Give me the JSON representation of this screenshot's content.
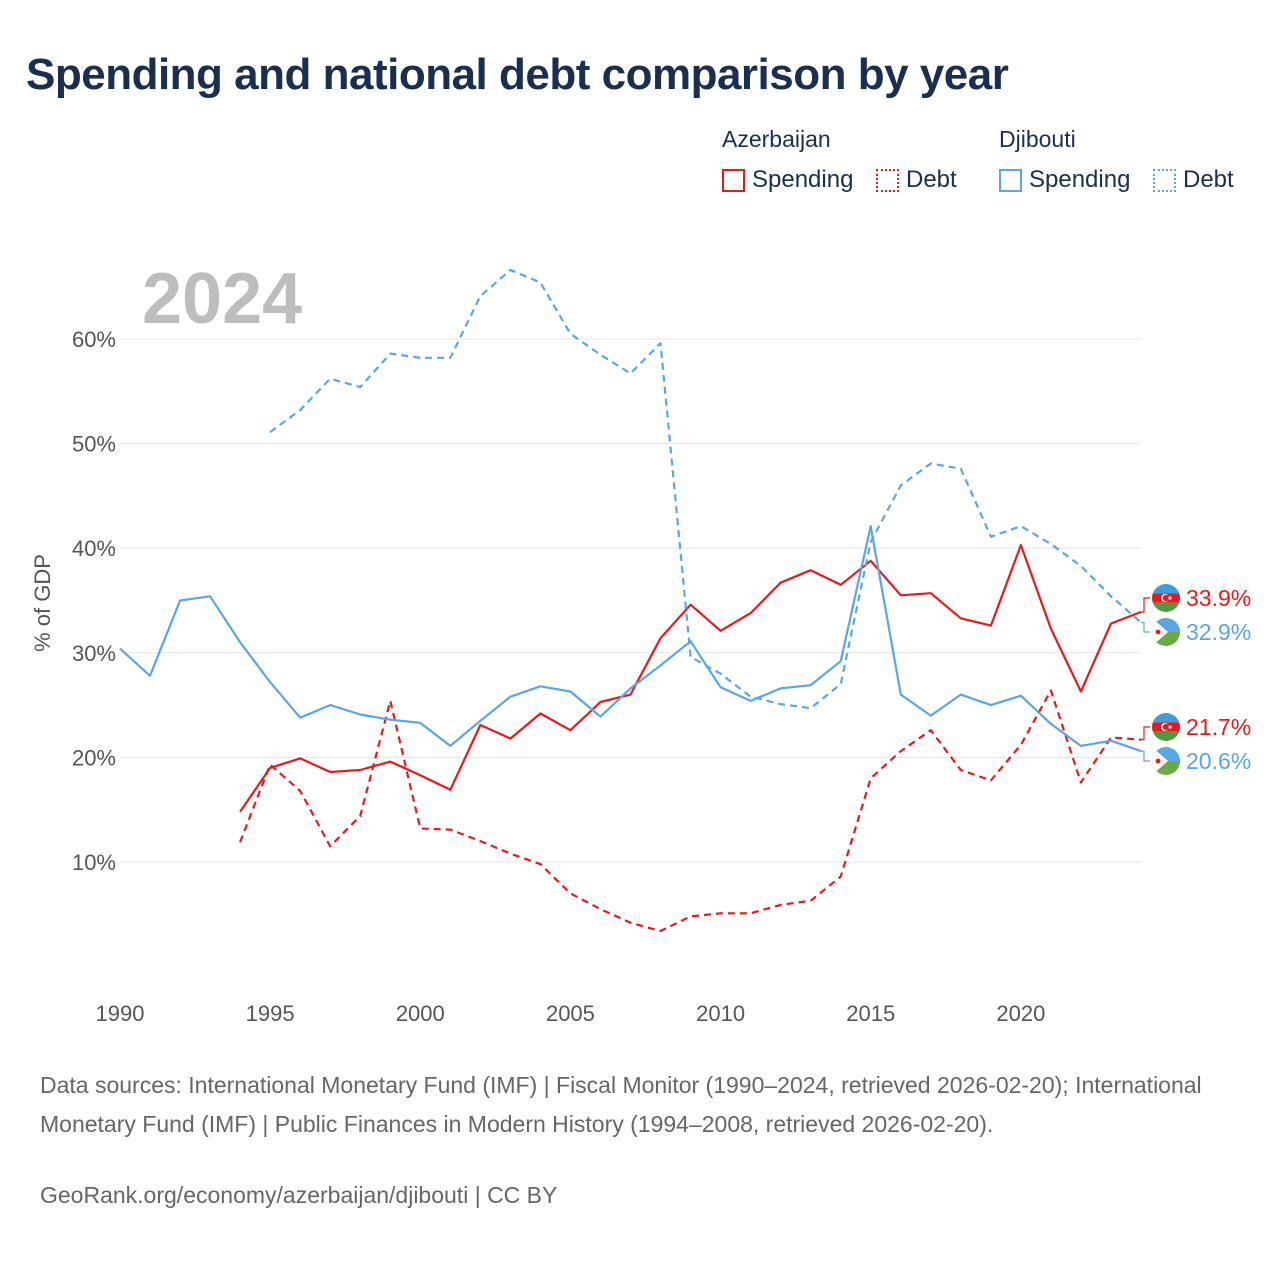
{
  "title": "Spending and national debt comparison by year",
  "legend": {
    "groups": [
      {
        "country": "Azerbaijan",
        "color": "#e8191d",
        "items": [
          "Spending",
          "Debt"
        ]
      },
      {
        "country": "Djibouti",
        "color": "#5aa5e6",
        "items": [
          "Spending",
          "Debt"
        ]
      }
    ]
  },
  "chart_data": {
    "type": "line",
    "year_label": "2024",
    "ylabel": "% of GDP",
    "xlim": [
      1990,
      2024
    ],
    "ylim": [
      0,
      65
    ],
    "x_ticks": [
      1990,
      1995,
      2000,
      2005,
      2010,
      2015,
      2020
    ],
    "y_ticks": [
      10,
      20,
      30,
      40,
      50,
      60
    ],
    "y_tick_labels": [
      "10%",
      "20%",
      "30%",
      "40%",
      "50%",
      "60%"
    ],
    "series": [
      {
        "name": "Azerbaijan Spending",
        "country": "Azerbaijan",
        "metric": "Spending",
        "color": "#e8191d",
        "dashed": false,
        "end_label": "33.9%",
        "x": [
          1994,
          1995,
          1996,
          1997,
          1998,
          1999,
          2000,
          2001,
          2002,
          2003,
          2004,
          2005,
          2006,
          2007,
          2008,
          2009,
          2010,
          2011,
          2012,
          2013,
          2014,
          2015,
          2016,
          2017,
          2018,
          2019,
          2020,
          2021,
          2022,
          2023,
          2024
        ],
        "values": [
          14.8,
          19.0,
          19.9,
          18.6,
          18.8,
          19.6,
          18.3,
          16.9,
          23.1,
          21.8,
          24.2,
          22.6,
          25.3,
          26.0,
          31.4,
          34.6,
          32.1,
          33.8,
          36.7,
          37.9,
          36.5,
          38.8,
          35.5,
          35.7,
          33.3,
          32.6,
          40.3,
          32.3,
          26.3,
          32.8,
          33.9
        ]
      },
      {
        "name": "Azerbaijan Debt",
        "country": "Azerbaijan",
        "metric": "Debt",
        "color": "#e8191d",
        "dashed": true,
        "end_label": "21.7%",
        "x": [
          1994,
          1995,
          1996,
          1997,
          1998,
          1999,
          2000,
          2001,
          2002,
          2003,
          2004,
          2005,
          2006,
          2007,
          2008,
          2009,
          2010,
          2011,
          2012,
          2013,
          2014,
          2015,
          2016,
          2017,
          2018,
          2019,
          2020,
          2021,
          2022,
          2023,
          2024
        ],
        "values": [
          11.9,
          19.3,
          16.8,
          11.5,
          14.4,
          25.4,
          13.2,
          13.1,
          12.0,
          10.8,
          9.8,
          7.0,
          5.5,
          4.2,
          3.4,
          4.8,
          5.1,
          5.1,
          5.9,
          6.3,
          8.6,
          18.0,
          20.6,
          22.6,
          18.8,
          17.8,
          21.2,
          26.4,
          17.6,
          21.9,
          21.7
        ]
      },
      {
        "name": "Djibouti Spending",
        "country": "Djibouti",
        "metric": "Spending",
        "color": "#5aa5e6",
        "dashed": false,
        "end_label": "20.6%",
        "x": [
          1990,
          1991,
          1992,
          1993,
          1994,
          1995,
          1996,
          1997,
          1998,
          1999,
          2000,
          2001,
          2002,
          2003,
          2004,
          2005,
          2006,
          2007,
          2008,
          2009,
          2010,
          2011,
          2012,
          2013,
          2014,
          2015,
          2016,
          2017,
          2018,
          2019,
          2020,
          2021,
          2022,
          2023,
          2024
        ],
        "values": [
          30.4,
          27.8,
          35.0,
          35.4,
          31.0,
          27.2,
          23.8,
          25.0,
          24.1,
          23.6,
          23.3,
          21.1,
          23.5,
          25.8,
          26.8,
          26.3,
          23.9,
          26.6,
          28.8,
          31.1,
          26.7,
          25.4,
          26.6,
          26.9,
          29.2,
          42.1,
          26.0,
          24.0,
          26.0,
          25.0,
          25.9,
          23.2,
          21.1,
          21.6,
          20.6
        ]
      },
      {
        "name": "Djibouti Debt",
        "country": "Djibouti",
        "metric": "Debt",
        "color": "#5aa5e6",
        "dashed": true,
        "end_label": "32.9%",
        "x": [
          1995,
          1996,
          1997,
          1998,
          1999,
          2000,
          2001,
          2002,
          2003,
          2004,
          2005,
          2006,
          2007,
          2008,
          2009,
          2010,
          2011,
          2012,
          2013,
          2014,
          2015,
          2016,
          2017,
          2018,
          2019,
          2020,
          2021,
          2022,
          2023,
          2024
        ],
        "values": [
          51.1,
          53.2,
          56.2,
          55.4,
          58.6,
          58.2,
          58.2,
          64.1,
          66.6,
          65.4,
          60.5,
          58.5,
          56.7,
          59.6,
          29.6,
          28.0,
          25.8,
          25.1,
          24.7,
          27.0,
          40.6,
          46.0,
          48.1,
          47.6,
          41.1,
          42.1,
          40.4,
          38.3,
          35.4,
          32.9
        ]
      }
    ]
  },
  "footer": {
    "sources": "Data sources: International Monetary Fund (IMF) | Fiscal Monitor (1990–2024, retrieved 2026-02-20); International Monetary Fund (IMF) | Public Finances in Modern History (1994–2008, retrieved 2026-02-20).",
    "credit": "GeoRank.org/economy/azerbaijan/djibouti | CC BY"
  }
}
